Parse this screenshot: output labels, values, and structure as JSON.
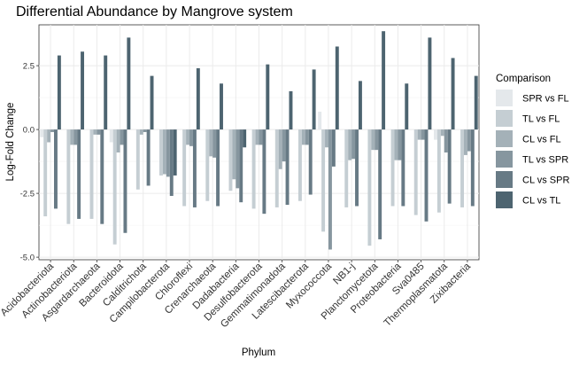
{
  "chart_data": {
    "type": "bar",
    "title": "Differential Abundance by Mangrove system",
    "xlabel": "Phylum",
    "ylabel": "Log-Fold Change",
    "ylim": [
      -5.1,
      4.1
    ],
    "yticks": [
      -5.0,
      -2.5,
      0.0,
      2.5
    ],
    "ytick_labels": [
      "-5.0",
      "-2.5",
      "0.0",
      "2.5"
    ],
    "grid": true,
    "legend": {
      "title": "Comparison",
      "position": "right"
    },
    "categories": [
      "Acidobacteriota",
      "Actinobacteriota",
      "Asgardarchaeota",
      "Bacteroidota",
      "Calditrichota",
      "Campilobacterota",
      "Chloroflexi",
      "Crenarchaeota",
      "Dadabacteria",
      "Desulfobacterota",
      "Gemmatimonadota",
      "Latescibacterota",
      "Myxococcota",
      "NB1-j",
      "Planctomycetota",
      "Proteobacteria",
      "Sva0485",
      "Thermoplasmatota",
      "Zixibacteria"
    ],
    "series": [
      {
        "name": "SPR vs FL",
        "color": "#e4e8eb",
        "values": [
          -0.3,
          null,
          null,
          -0.5,
          null,
          null,
          null,
          null,
          null,
          null,
          null,
          null,
          0.7,
          null,
          null,
          null,
          null,
          -0.4,
          null
        ]
      },
      {
        "name": "TL vs FL",
        "color": "#c5ced3",
        "values": [
          -3.4,
          -3.7,
          -3.5,
          -4.5,
          -2.35,
          -1.8,
          -3.0,
          -2.8,
          -2.4,
          -3.1,
          -3.05,
          -2.8,
          -4.0,
          -3.05,
          -4.55,
          -3.0,
          -3.35,
          -3.25,
          -3.05
        ]
      },
      {
        "name": "CL vs FL",
        "color": "#a4b1b8",
        "values": [
          -0.5,
          -0.6,
          -0.2,
          -0.9,
          -0.2,
          -1.75,
          -0.6,
          -1.05,
          -1.95,
          -0.6,
          -1.55,
          -0.6,
          -0.7,
          -1.2,
          -0.8,
          -1.2,
          -0.4,
          -0.25,
          -1.0
        ]
      },
      {
        "name": "TL vs SPR",
        "color": "#86969f",
        "values": [
          -0.1,
          -0.6,
          -0.2,
          -0.6,
          -0.1,
          -1.85,
          -0.65,
          -1.1,
          -2.3,
          -0.6,
          -1.25,
          -0.6,
          -4.7,
          -1.15,
          -0.8,
          -1.2,
          -0.4,
          -0.9,
          -0.85
        ]
      },
      {
        "name": "CL vs SPR",
        "color": "#677a85",
        "values": [
          -3.1,
          -3.5,
          -3.7,
          -4.05,
          -2.2,
          -2.6,
          -3.05,
          -3.0,
          -2.85,
          -3.3,
          -2.95,
          -2.55,
          -1.45,
          -3.0,
          -4.3,
          -3.0,
          -3.6,
          -2.9,
          -3.0
        ]
      },
      {
        "name": "CL vs TL",
        "color": "#4d6470",
        "values": [
          2.9,
          3.05,
          2.9,
          3.6,
          2.1,
          -1.8,
          2.4,
          1.8,
          -0.7,
          2.55,
          1.5,
          2.35,
          3.25,
          1.9,
          3.85,
          1.8,
          3.6,
          2.8,
          2.1
        ]
      }
    ]
  }
}
